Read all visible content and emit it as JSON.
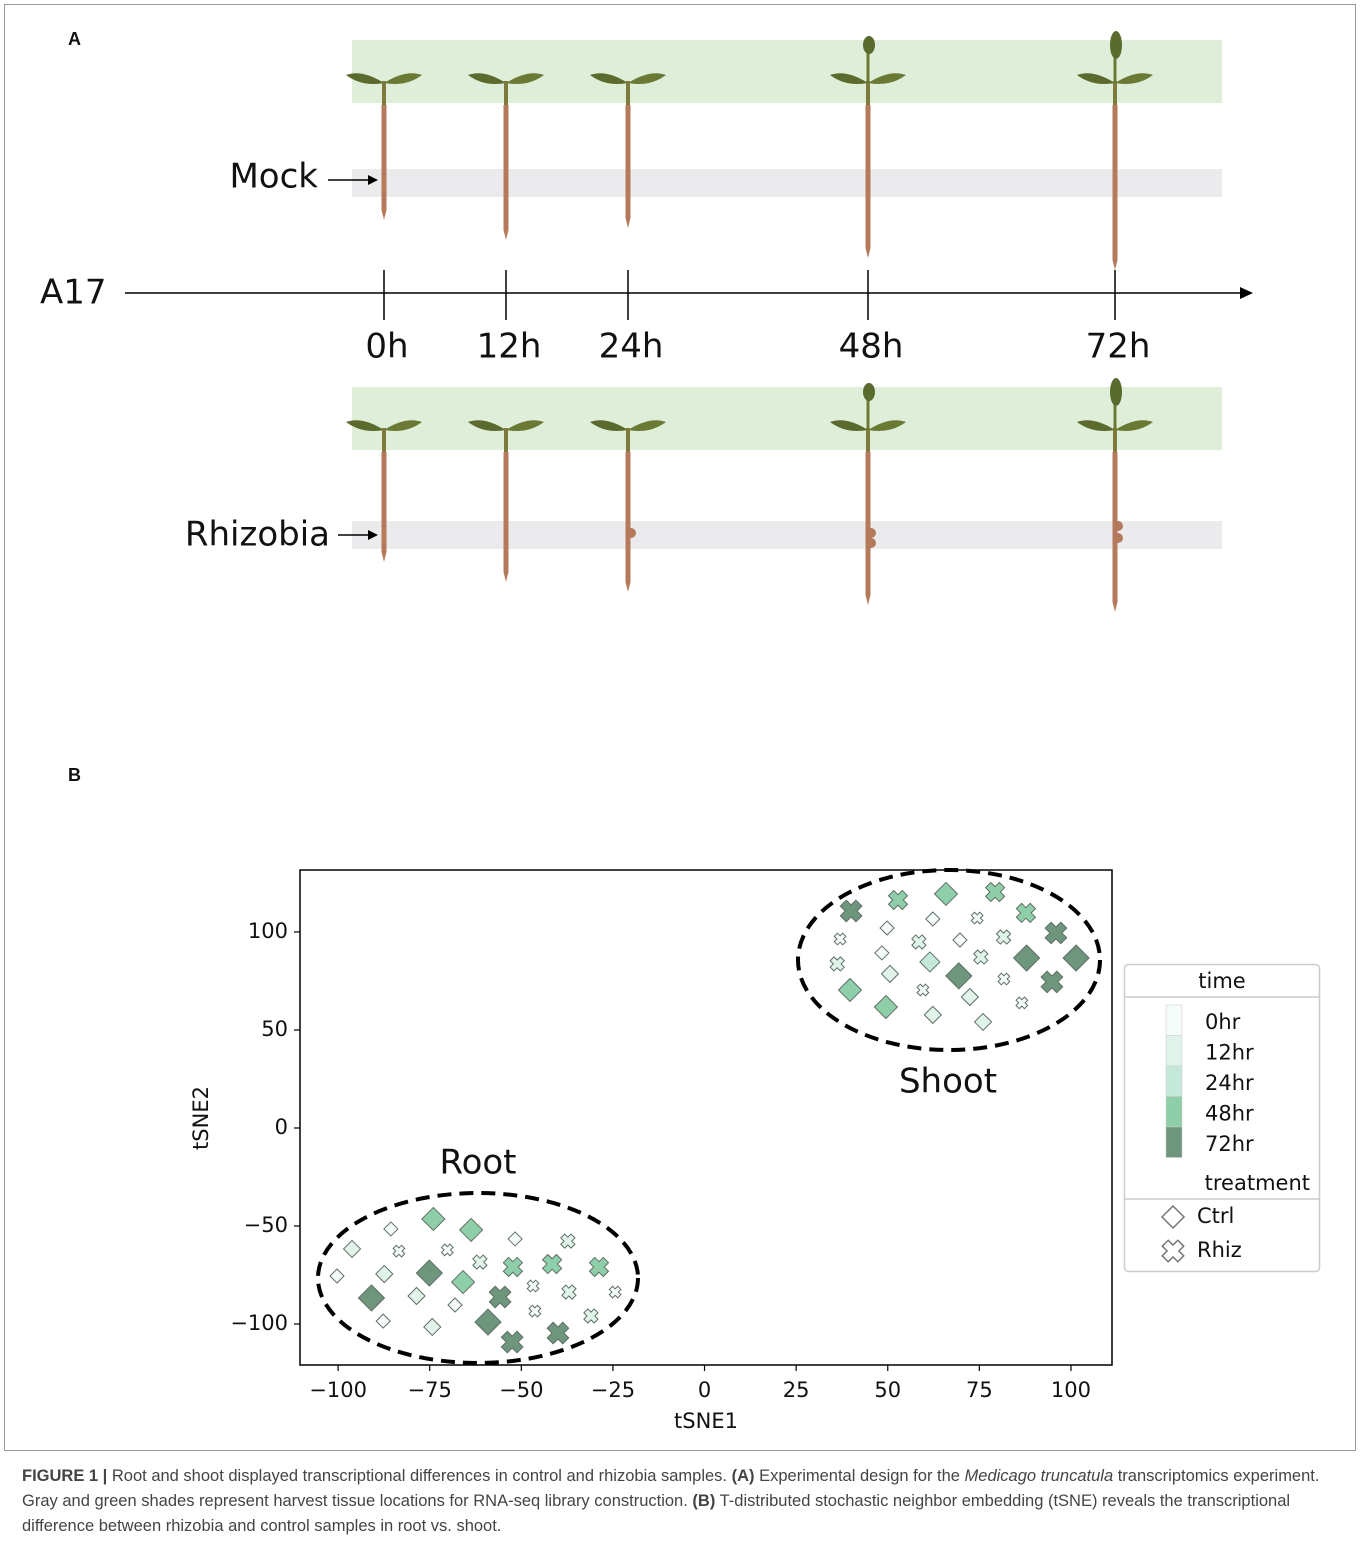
{
  "panel_a": {
    "label": "A",
    "rows": [
      "Mock",
      "Rhizobia"
    ],
    "axis_label": "A17",
    "timepoints": [
      "0h",
      "12h",
      "24h",
      "48h",
      "72h"
    ]
  },
  "panel_b": {
    "label": "B"
  },
  "chart_data": {
    "type": "scatter",
    "x_label": "tSNE1",
    "y_label": "tSNE2",
    "xlim": [
      -110.4,
      111.2
    ],
    "ylim": [
      -120.9,
      131.6
    ],
    "xticks": [
      {
        "value": -100,
        "label": "−100"
      },
      {
        "value": -75,
        "label": "−75"
      },
      {
        "value": -50,
        "label": "−50"
      },
      {
        "value": -25,
        "label": "−25"
      },
      0,
      25,
      50,
      75,
      100
    ],
    "yticks": [
      {
        "value": -100,
        "label": "−100"
      },
      {
        "value": -50,
        "label": "−50"
      },
      0,
      50,
      100
    ],
    "annotations": [
      "Shoot",
      "Root"
    ],
    "legend": {
      "time_title": "time",
      "treatment_title": "treatment"
    },
    "time_levels": [
      {
        "name": "0hr",
        "color": "#f5fbf8"
      },
      {
        "name": "12hr",
        "color": "#e0f3ea"
      },
      {
        "name": "24hr",
        "color": "#c4e8da"
      },
      {
        "name": "48hr",
        "color": "#8ecfaa"
      },
      {
        "name": "72hr",
        "color": "#6d967c"
      }
    ],
    "treatments": [
      "Ctrl",
      "Rhiz"
    ],
    "series": [
      {
        "time": "0hr",
        "treatment": "Ctrl",
        "x": [
          62.3,
          49.8,
          69.7,
          48.4,
          -100.3,
          -85.6,
          -87.7,
          -68.1,
          -51.7
        ],
        "y": [
          106.6,
          102.0,
          95.9,
          89.3,
          -75.5,
          -51.5,
          -98.5,
          -90.3,
          -56.6
        ]
      },
      {
        "time": "12hr",
        "treatment": "Ctrl",
        "x": [
          50.6,
          72.4,
          62.3,
          76.0,
          -96.2,
          -87.4,
          -78.6,
          -74.3
        ],
        "y": [
          78.6,
          66.8,
          57.7,
          54.1,
          -61.7,
          -74.5,
          -85.7,
          -101.5
        ]
      },
      {
        "time": "24hr",
        "treatment": "Ctrl",
        "x": [
          61.5
        ],
        "y": [
          84.7
        ]
      },
      {
        "time": "48hr",
        "treatment": "Ctrl",
        "x": [
          65.9,
          39.7,
          49.5,
          -74.0,
          -63.7,
          -65.9
        ],
        "y": [
          119.4,
          70.4,
          61.7,
          -46.4,
          -52.0,
          -78.6
        ]
      },
      {
        "time": "72hr",
        "treatment": "Ctrl",
        "x": [
          101.4,
          87.9,
          69.4,
          -90.9,
          -75.1,
          -59.1
        ],
        "y": [
          86.7,
          86.7,
          77.6,
          -86.7,
          -74.0,
          -99.0
        ]
      },
      {
        "time": "0hr",
        "treatment": "Rhiz",
        "x": [
          74.4,
          37.0,
          59.6,
          81.7,
          86.6,
          -83.4,
          -70.2,
          -46.8,
          -46.3,
          -24.4
        ],
        "y": [
          107.1,
          96.4,
          70.4,
          76.0,
          63.8,
          -62.8,
          -62.2,
          -80.6,
          -93.4,
          -83.7
        ]
      },
      {
        "time": "12hr",
        "treatment": "Rhiz",
        "x": [
          58.5,
          81.6,
          36.2,
          75.4,
          -61.3,
          -37.3,
          -37.0,
          -31.0
        ],
        "y": [
          94.9,
          97.4,
          83.7,
          87.2,
          -68.4,
          -57.7,
          -83.7,
          -95.9
        ]
      },
      {
        "time": "48hr",
        "treatment": "Rhiz",
        "x": [
          52.8,
          79.3,
          87.7,
          -52.3,
          -41.6,
          -28.8
        ],
        "y": [
          116.3,
          120.4,
          109.7,
          -70.9,
          -69.4,
          -70.9
        ]
      },
      {
        "time": "72hr",
        "treatment": "Rhiz",
        "x": [
          40.0,
          95.9,
          94.8,
          -55.8,
          -52.5,
          -40.0
        ],
        "y": [
          110.7,
          99.5,
          74.5,
          -86.2,
          -109.2,
          -104.6
        ]
      }
    ]
  },
  "caption": [
    "FIGURE 1 |",
    " Root and shoot displayed transcriptional differences in control and rhizobia samples. ",
    "(A)",
    " Experimental design for the ",
    "Medicago truncatula",
    " transcriptomics experiment. Gray and green shades represent harvest tissue locations for RNA-seq library construction. ",
    "(B)",
    " T-distributed stochastic neighbor embedding (tSNE) reveals the transcriptional difference between rhizobia and control samples in root vs. shoot."
  ]
}
